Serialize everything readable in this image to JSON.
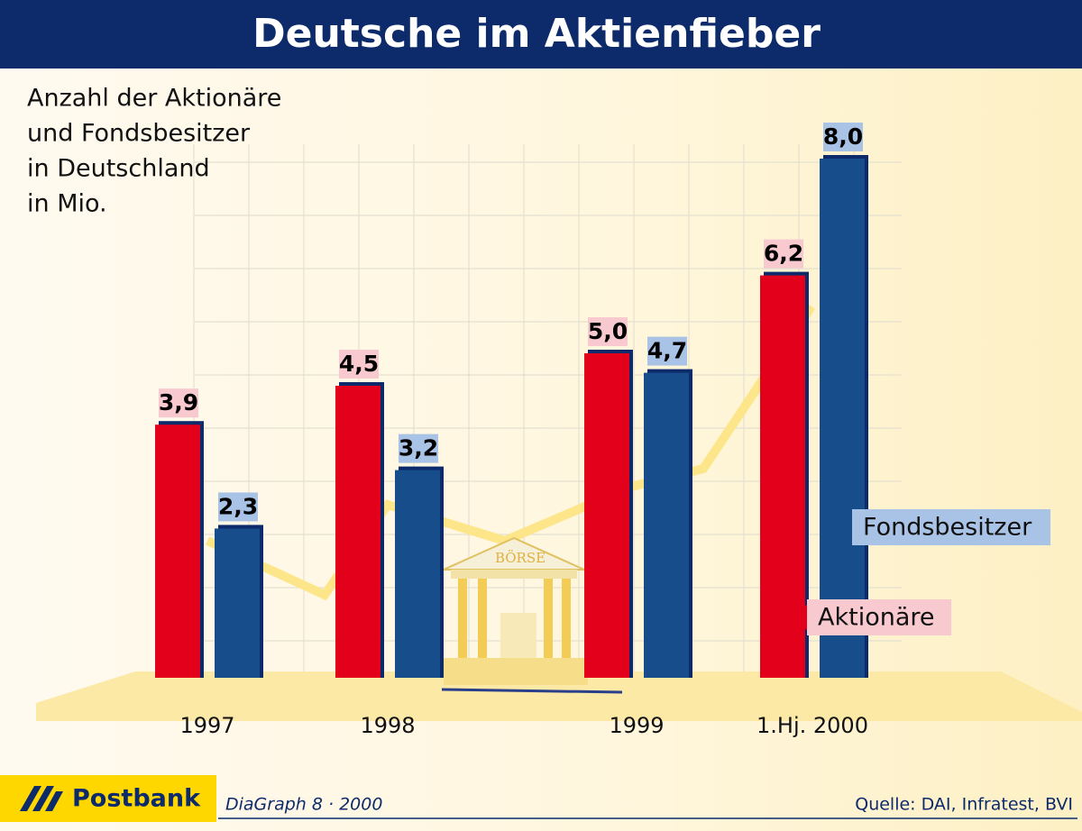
{
  "chart_data": {
    "type": "bar",
    "title": "Deutsche im Aktienfieber",
    "subtitle": [
      "Anzahl der Aktionäre",
      "und Fondsbesitzer",
      "in Deutschland",
      "in Mio."
    ],
    "categories": [
      "1997",
      "1998",
      "1999",
      "1.Hj. 2000"
    ],
    "series": [
      {
        "name": "Aktionäre",
        "color": "#e2001a",
        "values": [
          3.9,
          4.5,
          5.0,
          6.2
        ],
        "value_labels": [
          "3,9",
          "4,5",
          "5,0",
          "6,2"
        ]
      },
      {
        "name": "Fondsbesitzer",
        "color": "#184d8c",
        "values": [
          2.3,
          3.2,
          4.7,
          8.0
        ],
        "value_labels": [
          "2,3",
          "3,2",
          "4,7",
          "8,0"
        ]
      }
    ],
    "ylim": [
      0,
      8
    ],
    "illustration_label": "BÖRSE"
  },
  "footer": {
    "brand": "Postbank",
    "credit": "DiaGraph 8 · 2000",
    "source": "Quelle: DAI, Infratest, BVI"
  }
}
